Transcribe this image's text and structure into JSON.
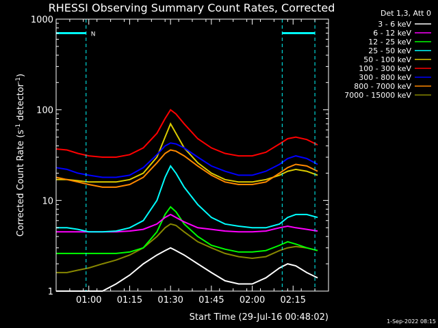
{
  "chart_data": {
    "type": "line",
    "title": "RHESSI Observing Summary Count Rates, Corrected",
    "xlabel": "Start Time (29-Jul-16 00:48:02)",
    "ylabel_pre": "Corrected Count Rate (s",
    "ylabel_sup1": "-1",
    "ylabel_mid": " detector",
    "ylabel_sup2": "-1",
    "ylabel_post": ")",
    "yscale": "log",
    "ylim": [
      1,
      1000
    ],
    "xlim": [
      "00:48",
      "02:28"
    ],
    "x_ticks": [
      {
        "t": "01:00",
        "label": "01:00"
      },
      {
        "t": "01:15",
        "label": "01:15"
      },
      {
        "t": "01:30",
        "label": "01:30"
      },
      {
        "t": "01:45",
        "label": "01:45"
      },
      {
        "t": "02:00",
        "label": "02:00"
      },
      {
        "t": "02:15",
        "label": "02:15"
      }
    ],
    "y_ticks": [
      {
        "v": 1,
        "label": "1"
      },
      {
        "v": 10,
        "label": "10"
      },
      {
        "v": 100,
        "label": "100"
      },
      {
        "v": 1000,
        "label": "1000"
      }
    ],
    "legend_title": "Det 1,3, Att 0",
    "legend_position": "right",
    "x": [
      "00:48",
      "00:52",
      "00:56",
      "01:00",
      "01:05",
      "01:10",
      "01:15",
      "01:20",
      "01:25",
      "01:28",
      "01:30",
      "01:32",
      "01:35",
      "01:40",
      "01:45",
      "01:50",
      "01:55",
      "02:00",
      "02:05",
      "02:10",
      "02:13",
      "02:16",
      "02:20",
      "02:24"
    ],
    "series": [
      {
        "name": "3 - 6 keV",
        "color": "#ffffff",
        "values": [
          1.0,
          1.0,
          1.0,
          1.0,
          1.0,
          1.2,
          1.5,
          2.0,
          2.5,
          2.8,
          3.0,
          2.8,
          2.5,
          2.0,
          1.6,
          1.3,
          1.2,
          1.2,
          1.4,
          1.8,
          2.0,
          1.9,
          1.6,
          1.4
        ]
      },
      {
        "name": "6 - 12 keV",
        "color": "#ff00ff",
        "values": [
          4.5,
          4.5,
          4.5,
          4.5,
          4.5,
          4.5,
          4.6,
          4.8,
          5.5,
          6.5,
          7.0,
          6.5,
          5.8,
          5.0,
          4.8,
          4.6,
          4.5,
          4.5,
          4.6,
          5.0,
          5.2,
          5.0,
          4.8,
          4.6
        ]
      },
      {
        "name": "12 - 25 keV",
        "color": "#00ff00",
        "values": [
          2.6,
          2.6,
          2.6,
          2.6,
          2.6,
          2.6,
          2.7,
          3.0,
          4.5,
          7.0,
          8.5,
          7.5,
          5.5,
          4.0,
          3.2,
          2.9,
          2.7,
          2.7,
          2.8,
          3.2,
          3.5,
          3.3,
          3.0,
          2.8
        ]
      },
      {
        "name": "25 - 50 keV",
        "color": "#00ffff",
        "values": [
          5.0,
          5.0,
          4.8,
          4.5,
          4.5,
          4.6,
          5.0,
          6.0,
          10.0,
          18.0,
          24.0,
          20.0,
          14.0,
          9.0,
          6.5,
          5.5,
          5.2,
          5.0,
          5.0,
          5.5,
          6.5,
          7.0,
          7.0,
          6.5
        ]
      },
      {
        "name": "50 - 100 keV",
        "color": "#ddcc00",
        "values": [
          17.0,
          17.0,
          16.5,
          16.0,
          16.0,
          16.0,
          17.0,
          20.0,
          30.0,
          50.0,
          70.0,
          55.0,
          38.0,
          26.0,
          20.0,
          17.0,
          16.0,
          16.0,
          17.0,
          19.0,
          21.0,
          22.0,
          21.0,
          19.0
        ]
      },
      {
        "name": "100 - 300 keV",
        "color": "#ff0000",
        "values": [
          37.0,
          36.0,
          33.0,
          31.0,
          30.0,
          30.0,
          32.0,
          38.0,
          55.0,
          80.0,
          100.0,
          90.0,
          70.0,
          48.0,
          38.0,
          33.0,
          31.0,
          31.0,
          34.0,
          42.0,
          48.0,
          50.0,
          47.0,
          41.0
        ]
      },
      {
        "name": "300 - 800 keV",
        "color": "#0000ff",
        "values": [
          23.0,
          22.0,
          20.0,
          19.0,
          18.0,
          18.0,
          19.0,
          23.0,
          32.0,
          40.0,
          43.0,
          42.0,
          38.0,
          30.0,
          24.0,
          21.0,
          19.0,
          19.0,
          21.0,
          25.0,
          29.0,
          31.0,
          29.0,
          25.0
        ]
      },
      {
        "name": "800 - 7000 keV",
        "color": "#ff8800",
        "values": [
          18.0,
          17.0,
          16.0,
          15.0,
          14.0,
          14.0,
          15.0,
          18.0,
          26.0,
          33.0,
          36.0,
          35.0,
          31.0,
          24.0,
          19.0,
          16.0,
          15.0,
          15.0,
          16.0,
          20.0,
          23.0,
          25.0,
          24.0,
          21.0
        ]
      },
      {
        "name": "7000 - 15000 keV",
        "color": "#888800",
        "values": [
          1.6,
          1.6,
          1.7,
          1.8,
          2.0,
          2.2,
          2.5,
          3.0,
          4.0,
          5.0,
          5.5,
          5.3,
          4.5,
          3.5,
          3.0,
          2.6,
          2.4,
          2.3,
          2.4,
          2.8,
          3.0,
          3.1,
          3.0,
          2.8
        ]
      }
    ],
    "attenuator_marker": {
      "label": "N",
      "intervals": [
        [
          "00:48",
          "00:59"
        ],
        [
          "02:11",
          "02:23"
        ]
      ],
      "color": "#00ffff"
    },
    "grid": false
  },
  "timestamp": "1-Sep-2022 08:15"
}
